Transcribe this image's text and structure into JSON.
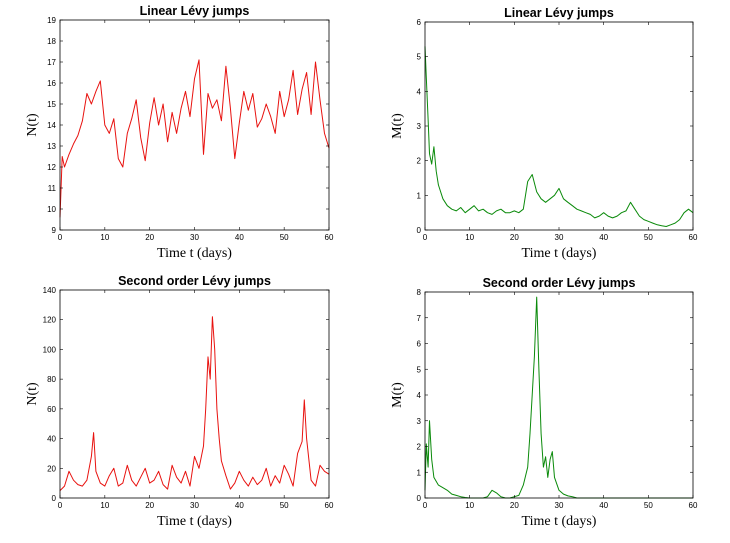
{
  "chart_data": [
    {
      "type": "line",
      "title": "Linear Lévy jumps",
      "xlabel": "Time t (days)",
      "ylabel": "N(t)",
      "xlim": [
        0,
        60
      ],
      "ylim": [
        9,
        19
      ],
      "xticks": [
        0,
        10,
        20,
        30,
        40,
        50,
        60
      ],
      "yticks": [
        9,
        10,
        11,
        12,
        13,
        14,
        15,
        16,
        17,
        18,
        19
      ],
      "grid": false,
      "color": "#e8120f",
      "series": [
        {
          "x": [
            0,
            0.5,
            1,
            2,
            3,
            4,
            5,
            6,
            7,
            8,
            9,
            10,
            11,
            12,
            13,
            14,
            15,
            16,
            17,
            18,
            19,
            20,
            21,
            22,
            23,
            24,
            25,
            26,
            27,
            28,
            29,
            30,
            31,
            32,
            33,
            34,
            35,
            36,
            37,
            38,
            39,
            40,
            41,
            42,
            43,
            44,
            45,
            46,
            47,
            48,
            49,
            50,
            51,
            52,
            53,
            54,
            55,
            56,
            57,
            58,
            59,
            60
          ],
          "y": [
            9.6,
            12.5,
            12.0,
            12.6,
            13.1,
            13.5,
            14.2,
            15.5,
            15.0,
            15.6,
            16.1,
            14.0,
            13.6,
            14.3,
            12.4,
            12.0,
            13.6,
            14.3,
            15.2,
            13.4,
            12.3,
            14.1,
            15.3,
            14.0,
            15.0,
            13.2,
            14.6,
            13.6,
            14.8,
            15.6,
            14.4,
            16.2,
            17.1,
            12.6,
            15.5,
            14.8,
            15.2,
            14.2,
            16.8,
            14.8,
            12.4,
            14.1,
            15.6,
            14.7,
            15.5,
            13.9,
            14.3,
            15.0,
            14.4,
            13.6,
            15.6,
            14.4,
            15.2,
            16.6,
            14.5,
            15.7,
            16.5,
            14.5,
            17.0,
            15.2,
            13.6,
            12.9
          ]
        }
      ]
    },
    {
      "type": "line",
      "title": "Linear Lévy jumps",
      "xlabel": "Time t (days)",
      "ylabel": "M(t)",
      "xlim": [
        0,
        60
      ],
      "ylim": [
        0,
        6
      ],
      "xticks": [
        0,
        10,
        20,
        30,
        40,
        50,
        60
      ],
      "yticks": [
        0,
        1,
        2,
        3,
        4,
        5,
        6
      ],
      "grid": false,
      "color": "#0a8a0a",
      "series": [
        {
          "x": [
            0,
            0.3,
            0.7,
            1,
            1.5,
            2,
            2.5,
            3,
            4,
            5,
            6,
            7,
            8,
            9,
            10,
            11,
            12,
            13,
            14,
            15,
            16,
            17,
            18,
            19,
            20,
            21,
            22,
            23,
            24,
            25,
            26,
            27,
            28,
            29,
            30,
            31,
            32,
            33,
            34,
            35,
            36,
            37,
            38,
            39,
            40,
            41,
            42,
            43,
            44,
            45,
            46,
            47,
            48,
            49,
            50,
            51,
            52,
            53,
            54,
            55,
            56,
            57,
            58,
            59,
            60
          ],
          "y": [
            5.3,
            4.4,
            3.2,
            2.2,
            1.9,
            2.4,
            1.7,
            1.3,
            0.9,
            0.7,
            0.6,
            0.55,
            0.65,
            0.5,
            0.6,
            0.7,
            0.55,
            0.6,
            0.5,
            0.45,
            0.55,
            0.6,
            0.5,
            0.5,
            0.55,
            0.5,
            0.6,
            1.4,
            1.6,
            1.1,
            0.9,
            0.8,
            0.9,
            1.0,
            1.2,
            0.9,
            0.8,
            0.7,
            0.6,
            0.55,
            0.5,
            0.45,
            0.35,
            0.4,
            0.5,
            0.4,
            0.35,
            0.4,
            0.5,
            0.55,
            0.8,
            0.6,
            0.4,
            0.3,
            0.25,
            0.2,
            0.15,
            0.12,
            0.1,
            0.15,
            0.2,
            0.3,
            0.5,
            0.6,
            0.5
          ]
        }
      ]
    },
    {
      "type": "line",
      "title": "Second order Lévy jumps",
      "xlabel": "Time t (days)",
      "ylabel": "N(t)",
      "xlim": [
        0,
        60
      ],
      "ylim": [
        0,
        140
      ],
      "xticks": [
        0,
        10,
        20,
        30,
        40,
        50,
        60
      ],
      "yticks": [
        0,
        20,
        40,
        60,
        80,
        100,
        120,
        140
      ],
      "grid": false,
      "color": "#e8120f",
      "series": [
        {
          "x": [
            0,
            1,
            2,
            3,
            4,
            5,
            6,
            7,
            7.5,
            8,
            9,
            10,
            11,
            12,
            13,
            14,
            15,
            16,
            17,
            18,
            19,
            20,
            21,
            22,
            23,
            24,
            25,
            26,
            27,
            28,
            29,
            30,
            31,
            32,
            32.5,
            33,
            33.5,
            34,
            34.5,
            35,
            35.5,
            36,
            37,
            38,
            39,
            40,
            41,
            42,
            43,
            44,
            45,
            46,
            47,
            48,
            49,
            50,
            51,
            52,
            53,
            54,
            54.5,
            55,
            56,
            57,
            58,
            59,
            60
          ],
          "y": [
            5,
            8,
            18,
            12,
            9,
            8,
            12,
            28,
            44,
            18,
            10,
            8,
            15,
            20,
            8,
            10,
            22,
            12,
            8,
            14,
            20,
            10,
            12,
            18,
            9,
            6,
            22,
            14,
            10,
            18,
            8,
            28,
            20,
            35,
            60,
            95,
            80,
            122,
            100,
            60,
            40,
            25,
            15,
            6,
            10,
            18,
            12,
            8,
            14,
            9,
            12,
            20,
            8,
            15,
            10,
            22,
            16,
            8,
            30,
            38,
            66,
            40,
            12,
            8,
            22,
            18,
            16
          ]
        }
      ]
    },
    {
      "type": "line",
      "title": "Second order Lévy jumps",
      "xlabel": "Time t (days)",
      "ylabel": "M(t)",
      "xlim": [
        0,
        60
      ],
      "ylim": [
        0,
        8
      ],
      "xticks": [
        0,
        10,
        20,
        30,
        40,
        50,
        60
      ],
      "yticks": [
        0,
        1,
        2,
        3,
        4,
        5,
        6,
        7,
        8
      ],
      "grid": false,
      "color": "#0a8a0a",
      "series": [
        {
          "x": [
            0,
            0.3,
            0.7,
            1,
            1.5,
            2,
            3,
            4,
            5,
            6,
            7,
            8,
            9,
            10,
            11,
            12,
            13,
            14,
            15,
            16,
            17,
            18,
            19,
            20,
            21,
            22,
            23,
            23.5,
            24,
            24.5,
            25,
            25.5,
            26,
            26.5,
            27,
            27.5,
            28,
            28.5,
            29,
            30,
            31,
            32,
            33,
            34,
            36,
            40,
            45,
            50,
            55,
            60
          ],
          "y": [
            0.3,
            2.1,
            1.2,
            3.0,
            1.5,
            0.8,
            0.5,
            0.4,
            0.3,
            0.15,
            0.1,
            0.05,
            0.02,
            0.0,
            0.0,
            0.0,
            0.0,
            0.05,
            0.3,
            0.2,
            0.05,
            0.0,
            0.0,
            0.05,
            0.1,
            0.5,
            1.2,
            2.5,
            4.0,
            5.5,
            7.8,
            5.0,
            2.5,
            1.2,
            1.6,
            0.8,
            1.5,
            1.8,
            0.8,
            0.3,
            0.15,
            0.08,
            0.05,
            0.0,
            0.0,
            0.0,
            0.0,
            0.0,
            0.0,
            0.0
          ]
        }
      ]
    }
  ]
}
